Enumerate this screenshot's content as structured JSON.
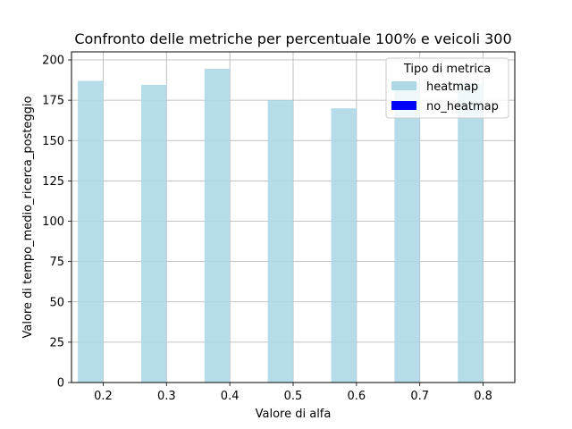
{
  "chart_data": {
    "type": "bar",
    "title": "Confronto delle metriche per percentuale 100% e veicoli 300",
    "xlabel": "Valore di alfa",
    "ylabel": "Valore di tempo_medio_ricerca_posteggio",
    "categories": [
      "0.2",
      "0.3",
      "0.4",
      "0.5",
      "0.6",
      "0.7",
      "0.8"
    ],
    "series": [
      {
        "name": "heatmap",
        "color": "#add8e6",
        "values": [
          187,
          184.5,
          194.5,
          175,
          170,
          186,
          185
        ]
      },
      {
        "name": "no_heatmap",
        "color": "#0000ff",
        "values": [
          null,
          null,
          null,
          null,
          null,
          null,
          null
        ]
      }
    ],
    "ylim": [
      0,
      205
    ],
    "yticks": [
      "0",
      "25",
      "50",
      "75",
      "100",
      "125",
      "150",
      "175",
      "200"
    ],
    "grid": true,
    "legend": {
      "title": "Tipo di metrica",
      "placement": "top-right"
    }
  }
}
